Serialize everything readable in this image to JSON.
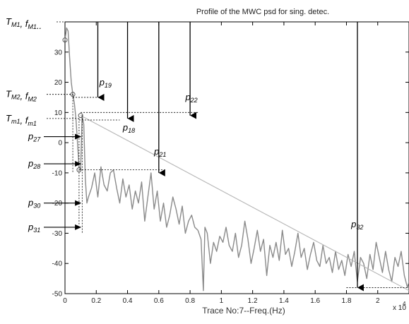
{
  "chart_data": {
    "type": "line",
    "title": "Profile of the MWC psd for sing. detec.",
    "xlabel": "Trace No:7--Freq.(Hz)",
    "x_multiplier": "x 10",
    "x_multiplier_exp": "4",
    "xlim": [
      0,
      2.2
    ],
    "ylim": [
      -50,
      40
    ],
    "xticks": [
      "0",
      "0.2",
      "0.4",
      "0.6",
      "0.8",
      "1",
      "1.2",
      "1.4",
      "1.6",
      "1.8",
      "2"
    ],
    "yticks": [
      "-50",
      "-40",
      "-30",
      "-20",
      "-10",
      "0",
      "10",
      "20",
      "30"
    ],
    "series": [
      {
        "color": "#8a8a8a",
        "x": [
          0.0,
          0.01,
          0.02,
          0.03,
          0.04,
          0.05,
          0.06,
          0.07,
          0.08,
          0.09,
          0.1,
          0.11,
          0.12,
          0.13,
          0.14,
          0.15,
          0.17,
          0.19,
          0.21,
          0.23,
          0.25,
          0.27,
          0.29,
          0.31,
          0.33,
          0.35,
          0.37,
          0.39,
          0.41,
          0.43,
          0.45,
          0.47,
          0.49,
          0.51,
          0.53,
          0.55,
          0.57,
          0.59,
          0.61,
          0.63,
          0.65,
          0.67,
          0.69,
          0.71,
          0.73,
          0.75,
          0.77,
          0.79,
          0.81,
          0.83,
          0.85,
          0.87,
          0.885,
          0.895,
          0.91,
          0.93,
          0.95,
          0.97,
          0.99,
          1.01,
          1.03,
          1.05,
          1.07,
          1.09,
          1.11,
          1.13,
          1.15,
          1.17,
          1.19,
          1.21,
          1.23,
          1.25,
          1.27,
          1.29,
          1.31,
          1.33,
          1.35,
          1.37,
          1.39,
          1.41,
          1.43,
          1.45,
          1.47,
          1.49,
          1.51,
          1.53,
          1.55,
          1.57,
          1.59,
          1.61,
          1.63,
          1.65,
          1.67,
          1.69,
          1.71,
          1.73,
          1.75,
          1.77,
          1.79,
          1.81,
          1.83,
          1.85,
          1.87,
          1.89,
          1.91,
          1.93,
          1.95,
          1.97,
          1.99,
          2.01,
          2.03,
          2.05,
          2.07,
          2.09,
          2.11,
          2.13,
          2.15,
          2.17,
          2.19,
          2.2
        ],
        "y": [
          34,
          38,
          37,
          28,
          20,
          16,
          13,
          8,
          0,
          -8,
          -9,
          9,
          6,
          -12,
          -20,
          -18,
          -15,
          -10,
          -18,
          -8,
          -14,
          -16,
          -10,
          -9,
          -15,
          -20,
          -12,
          -18,
          -14,
          -22,
          -16,
          -20,
          -13,
          -26,
          -18,
          -10,
          -22,
          -16,
          -26,
          -20,
          -28,
          -24,
          -18,
          -22,
          -27,
          -21,
          -30,
          -26,
          -24,
          -28,
          -29,
          -32,
          -49,
          -28,
          -30,
          -40,
          -33,
          -36,
          -31,
          -33,
          -28,
          -34,
          -36,
          -30,
          -38,
          -34,
          -26,
          -32,
          -40,
          -35,
          -29,
          -36,
          -32,
          -44,
          -34,
          -38,
          -33,
          -39,
          -29,
          -37,
          -35,
          -41,
          -36,
          -30,
          -38,
          -35,
          -42,
          -37,
          -33,
          -39,
          -41,
          -34,
          -40,
          -38,
          -43,
          -36,
          -42,
          -39,
          -44,
          -37,
          -41,
          -36,
          -46,
          -38,
          -40,
          -45,
          -37,
          -42,
          -33,
          -38,
          -43,
          -36,
          -42,
          -46,
          -38,
          -41,
          -36,
          -44,
          -48,
          -46
        ]
      },
      {
        "color": "#b5b5b5",
        "x": [
          0.1,
          2.2
        ],
        "y": [
          9,
          -49
        ]
      }
    ],
    "markers": [
      {
        "x": 0.0,
        "y": 34
      },
      {
        "x": 0.05,
        "y": 16
      },
      {
        "x": 0.1,
        "y": 9
      },
      {
        "x": 0.09,
        "y": -9
      }
    ],
    "arrows": [
      {
        "x": 0.21,
        "y_from": 40,
        "y_to": 15
      },
      {
        "x": 0.4,
        "y_from": 40,
        "y_to": 8
      },
      {
        "x": 0.6,
        "y_from": 40,
        "y_to": -10
      },
      {
        "x": 0.8,
        "y_from": 40,
        "y_to": 9
      },
      {
        "x": 1.87,
        "y_from": 40,
        "y_to": -48
      }
    ],
    "dashed_lines": [
      {
        "x1": 0.05,
        "y1": 15,
        "x2": 0.23,
        "y2": 15
      },
      {
        "x1": 0.1,
        "y1": 10,
        "x2": 0.85,
        "y2": 10
      },
      {
        "x1": 0.09,
        "y1": 7.5,
        "x2": 0.35,
        "y2": 7.5
      },
      {
        "x1": 0.09,
        "y1": -9,
        "x2": 0.65,
        "y2": -9
      },
      {
        "x1": 1.8,
        "y1": -48,
        "x2": 2.2,
        "y2": -48
      },
      {
        "x1": 0.05,
        "y1": 16,
        "x2": 0.05,
        "y2": -10
      },
      {
        "x1": 0.09,
        "y1": 8,
        "x2": 0.09,
        "y2": -27
      },
      {
        "x1": 0.11,
        "y1": 9,
        "x2": 0.11,
        "y2": -30
      }
    ],
    "annotations": [
      {
        "main": "p",
        "sub": "19",
        "x": 0.22,
        "y": 19
      },
      {
        "main": "p",
        "sub": "18",
        "x": 0.37,
        "y": 4
      },
      {
        "main": "p",
        "sub": "22",
        "x": 0.77,
        "y": 14
      },
      {
        "main": "p",
        "sub": "21",
        "x": 0.57,
        "y": -4
      },
      {
        "main": "p",
        "sub": "32",
        "x": 1.83,
        "y": -28
      }
    ],
    "left_labels": [
      {
        "main": "T",
        "sub": "M1",
        "sep": ", ",
        "main2": "f",
        "sub2": "M1",
        "tail": "..",
        "y": 40
      },
      {
        "main": "T",
        "sub": "M2",
        "sep": ", ",
        "main2": "f",
        "sub2": "M2",
        "tail": "",
        "y": 16
      },
      {
        "main": "T",
        "sub": "m1",
        "sep": ", ",
        "main2": "f",
        "sub2": "m1",
        "tail": "",
        "y": 8
      },
      {
        "main": "p",
        "sub": "27",
        "sep": "",
        "main2": "",
        "sub2": "",
        "tail": "",
        "y": 2
      },
      {
        "main": "p",
        "sub": "28",
        "sep": "",
        "main2": "",
        "sub2": "",
        "tail": "",
        "y": -7
      },
      {
        "main": "p",
        "sub": "30",
        "sep": "",
        "main2": "",
        "sub2": "",
        "tail": "",
        "y": -20
      },
      {
        "main": "p",
        "sub": "31",
        "sep": "",
        "main2": "",
        "sub2": "",
        "tail": "",
        "y": -28
      }
    ]
  }
}
